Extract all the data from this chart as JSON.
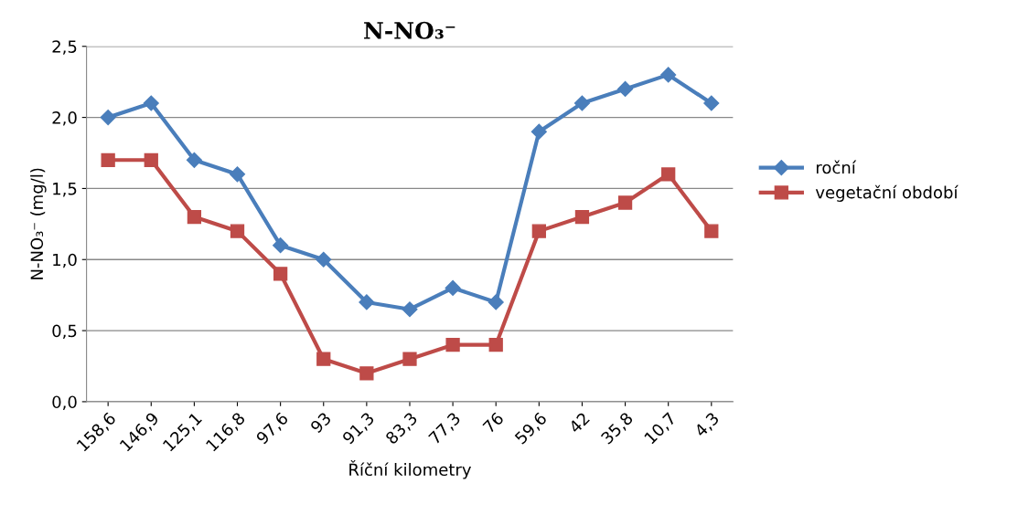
{
  "chart_data": {
    "type": "line",
    "title": "N-NO₃⁻",
    "xlabel": "Říční kilometry",
    "ylabel": "N-NO₃⁻ (mg/l)",
    "categories": [
      "158,6",
      "146,9",
      "125,1",
      "116,8",
      "97,6",
      "93",
      "91,3",
      "83,3",
      "77,3",
      "76",
      "59,6",
      "42",
      "35,8",
      "10,7",
      "4,3"
    ],
    "series": [
      {
        "name": "roční",
        "color": "#4a7ebb",
        "marker": "diamond",
        "values": [
          2.0,
          2.1,
          1.7,
          1.6,
          1.1,
          1.0,
          0.7,
          0.65,
          0.8,
          0.7,
          1.9,
          2.1,
          2.2,
          2.3,
          2.1
        ]
      },
      {
        "name": "vegetační období",
        "color": "#be4b48",
        "marker": "square",
        "values": [
          1.7,
          1.7,
          1.3,
          1.2,
          0.9,
          0.3,
          0.2,
          0.3,
          0.4,
          0.4,
          1.2,
          1.3,
          1.4,
          1.6,
          1.2
        ]
      }
    ],
    "ylim": [
      0,
      2.5
    ],
    "yticks": [
      {
        "value": 0,
        "label": "0,0"
      },
      {
        "value": 0.5,
        "label": "0,5"
      },
      {
        "value": 1.0,
        "label": "1,0"
      },
      {
        "value": 1.5,
        "label": "1,5"
      },
      {
        "value": 2.0,
        "label": "2,0"
      },
      {
        "value": 2.5,
        "label": "2,5"
      }
    ],
    "grid": "y",
    "legend": "right",
    "line_style": "solid"
  }
}
